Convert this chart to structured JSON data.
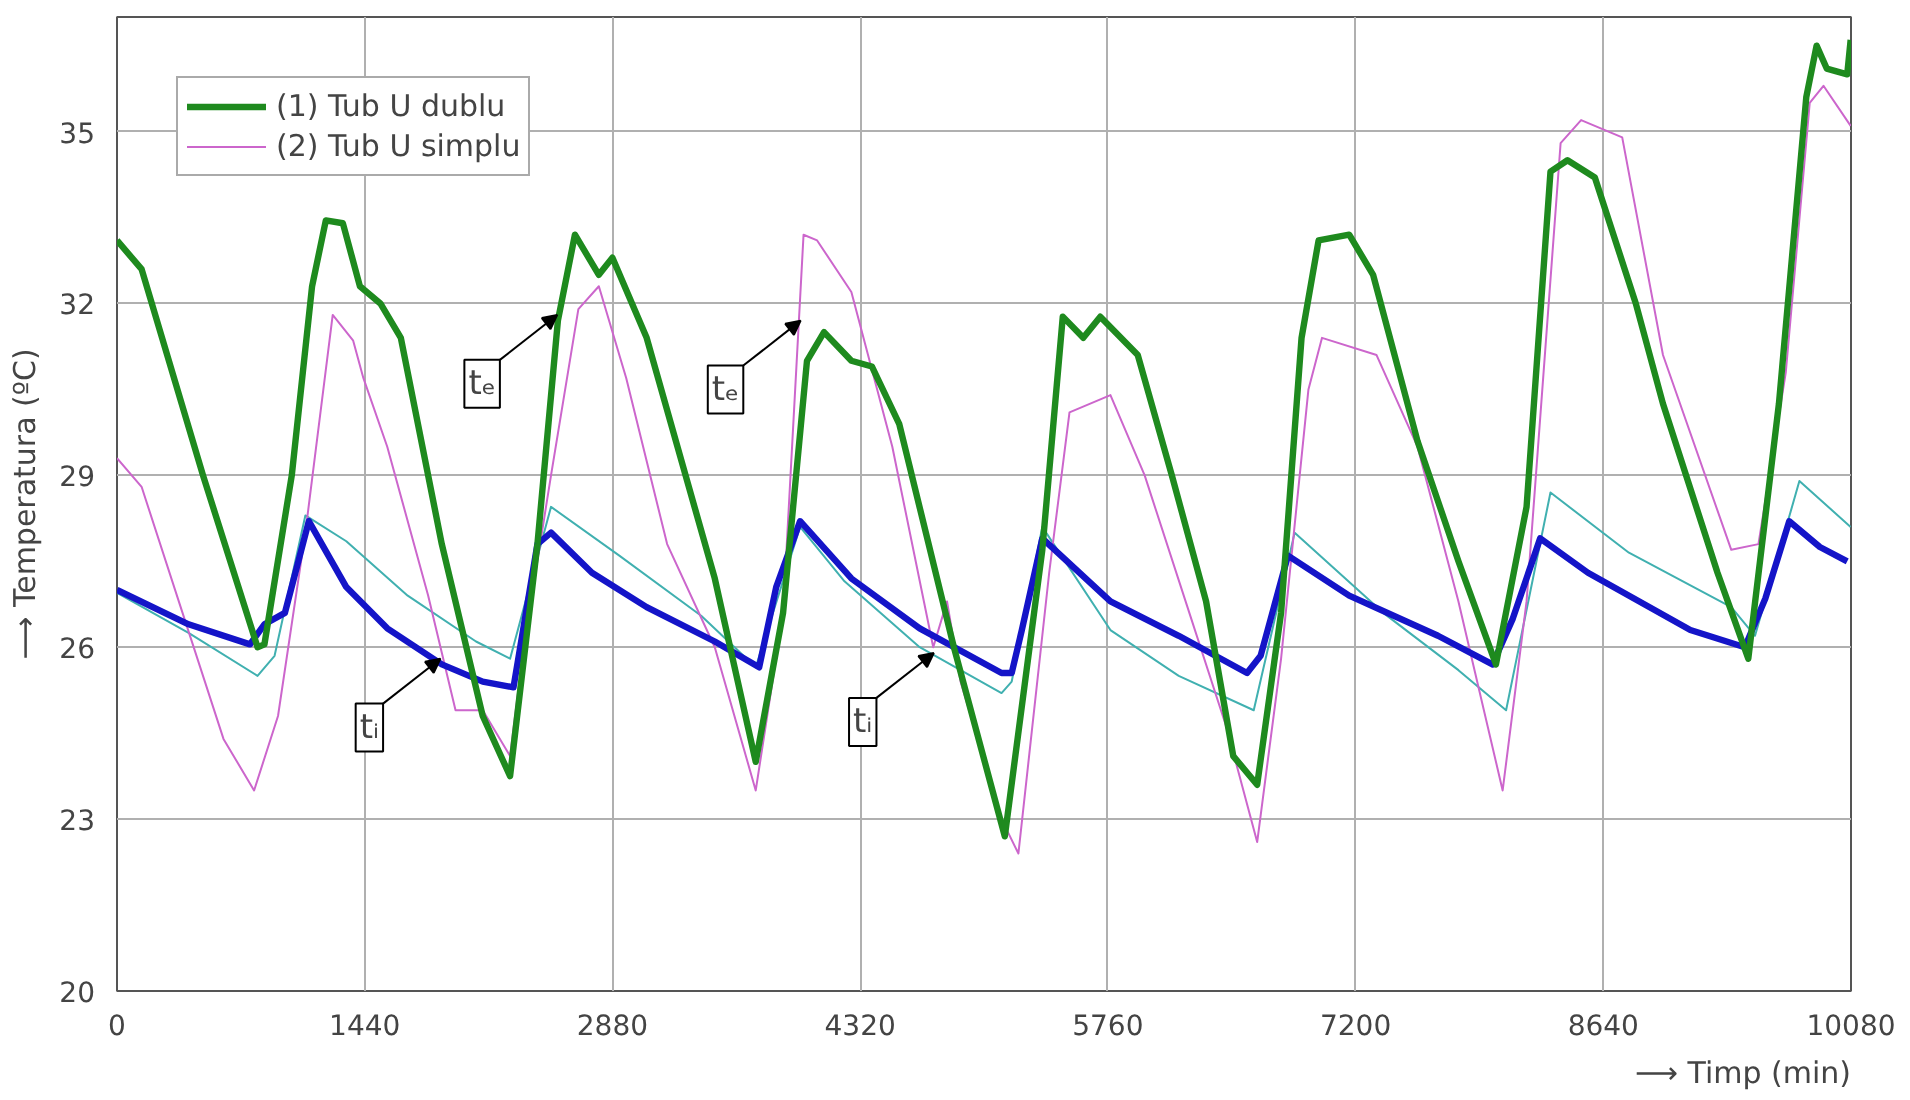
{
  "chart_data": {
    "type": "line",
    "xlabel": "⟶ Timp (min)",
    "ylabel": "⟶ Temperatura (ºC)",
    "xlim": [
      0,
      10080
    ],
    "ylim": [
      20,
      37
    ],
    "xticks": [
      0,
      1440,
      2880,
      4320,
      5760,
      7200,
      8640,
      10080
    ],
    "yticks": [
      20,
      23,
      26,
      29,
      32,
      35
    ],
    "grid": true,
    "legend": "top left",
    "annotations": [
      {
        "text": "tₑ",
        "x": 2559,
        "y": 31.8
      },
      {
        "text": "tₑ",
        "x": 3974,
        "y": 31.7
      },
      {
        "text": "tᵢ",
        "x": 1880,
        "y": 25.8
      },
      {
        "text": "tᵢ",
        "x": 4748,
        "y": 25.9
      }
    ],
    "series": [
      {
        "name": "(1) Tub U dublu",
        "color": "#1e8a1e",
        "x": [
          0,
          143,
          500,
          817,
          857,
          1016,
          1134,
          1214,
          1313,
          1412,
          1531,
          1650,
          1888,
          2126,
          2285,
          2444,
          2563,
          2662,
          2801,
          2880,
          3079,
          3475,
          3713,
          3872,
          4011,
          4110,
          4269,
          4388,
          4547,
          4865,
          5161,
          5379,
          5498,
          5617,
          5716,
          5934,
          6132,
          6331,
          6489,
          6628,
          6767,
          6886,
          6985,
          7163,
          7302,
          7560,
          7798,
          8016,
          8194,
          8333,
          8432,
          8591,
          8829,
          8987,
          9304,
          9483,
          9661,
          9820,
          9880,
          9939,
          10058,
          10078
        ],
        "values": [
          33.1,
          32.6,
          29.0,
          26.0,
          26.05,
          29.0,
          32.3,
          33.45,
          33.4,
          32.3,
          32.0,
          31.4,
          27.8,
          24.8,
          23.75,
          27.8,
          31.7,
          33.2,
          32.5,
          32.8,
          31.4,
          27.2,
          24.0,
          26.6,
          31.0,
          31.5,
          31.0,
          30.9,
          29.9,
          26.0,
          22.7,
          27.7,
          31.77,
          31.4,
          31.77,
          31.1,
          29.0,
          26.8,
          24.1,
          23.6,
          26.6,
          31.4,
          33.1,
          33.2,
          32.5,
          29.6,
          27.5,
          25.7,
          28.45,
          34.3,
          34.5,
          34.2,
          32.0,
          30.25,
          27.3,
          25.8,
          30.25,
          35.6,
          36.5,
          36.1,
          36.0,
          36.6
        ]
      },
      {
        "color": "#1414c8",
        "x": [
          0,
          416,
          773,
          857,
          976,
          1115,
          1333,
          1571,
          1888,
          2126,
          2305,
          2444,
          2523,
          2761,
          3079,
          3475,
          3733,
          3832,
          3971,
          4269,
          4666,
          5142,
          5201,
          5260,
          5379,
          5775,
          6172,
          6569,
          6648,
          6807,
          7163,
          7679,
          7996,
          8114,
          8273,
          8551,
          9146,
          9463,
          9582,
          9721,
          9899,
          10058
        ],
        "values": [
          27.0,
          26.4,
          26.05,
          26.4,
          26.6,
          28.2,
          27.05,
          26.33,
          25.7,
          25.4,
          25.3,
          27.8,
          28.0,
          27.3,
          26.7,
          26.1,
          25.65,
          27.05,
          28.2,
          27.2,
          26.33,
          25.55,
          25.55,
          26.3,
          27.9,
          26.8,
          26.2,
          25.55,
          25.85,
          27.6,
          26.9,
          26.2,
          25.7,
          26.5,
          27.9,
          27.3,
          26.3,
          26.0,
          26.85,
          28.2,
          27.75,
          27.5
        ]
      },
      {
        "name": "(2) Tub U simplu",
        "color": "#cc66cc",
        "x": [
          0,
          143,
          381,
          619,
          797,
          936,
          1095,
          1254,
          1373,
          1432,
          1571,
          1809,
          1968,
          2126,
          2285,
          2364,
          2523,
          2682,
          2801,
          2960,
          3198,
          3475,
          3713,
          3872,
          3991,
          4070,
          4269,
          4507,
          4745,
          4825,
          4904,
          5142,
          5240,
          5419,
          5537,
          5775,
          5974,
          6212,
          6450,
          6628,
          6767,
          6926,
          7005,
          7322,
          7560,
          7798,
          8055,
          8194,
          8392,
          8511,
          8750,
          8987,
          9384,
          9542,
          9701,
          9840,
          9920,
          10078
        ],
        "values": [
          29.3,
          28.8,
          26.6,
          24.4,
          23.5,
          24.8,
          28.0,
          31.8,
          31.35,
          30.7,
          29.5,
          26.9,
          24.9,
          24.9,
          24.1,
          26.0,
          29.0,
          31.9,
          32.3,
          30.7,
          27.8,
          26.0,
          23.5,
          26.6,
          33.2,
          33.1,
          32.2,
          29.5,
          26.0,
          26.8,
          25.4,
          23.0,
          22.4,
          27.3,
          30.1,
          30.4,
          29.0,
          26.8,
          24.6,
          22.6,
          25.8,
          30.5,
          31.4,
          31.1,
          29.5,
          26.8,
          23.5,
          26.8,
          34.8,
          35.2,
          34.9,
          31.1,
          27.7,
          27.8,
          30.8,
          35.5,
          35.8,
          35.1
        ]
      },
      {
        "color": "#40b0b0",
        "x": [
          0,
          416,
          817,
          916,
          1095,
          1333,
          1690,
          2087,
          2285,
          2523,
          2920,
          3396,
          3713,
          3971,
          4229,
          4666,
          5142,
          5201,
          5379,
          5775,
          6172,
          6608,
          6846,
          7361,
          7798,
          8075,
          8333,
          8789,
          9384,
          9522,
          9780,
          10078
        ],
        "values": [
          26.95,
          26.25,
          25.5,
          25.85,
          28.3,
          27.85,
          26.9,
          26.1,
          25.8,
          28.45,
          27.6,
          26.55,
          25.65,
          28.1,
          27.15,
          26.0,
          25.2,
          25.4,
          28.1,
          26.3,
          25.5,
          24.9,
          28.0,
          26.6,
          25.6,
          24.9,
          28.7,
          27.65,
          26.7,
          26.2,
          28.9,
          28.1
        ]
      }
    ]
  }
}
